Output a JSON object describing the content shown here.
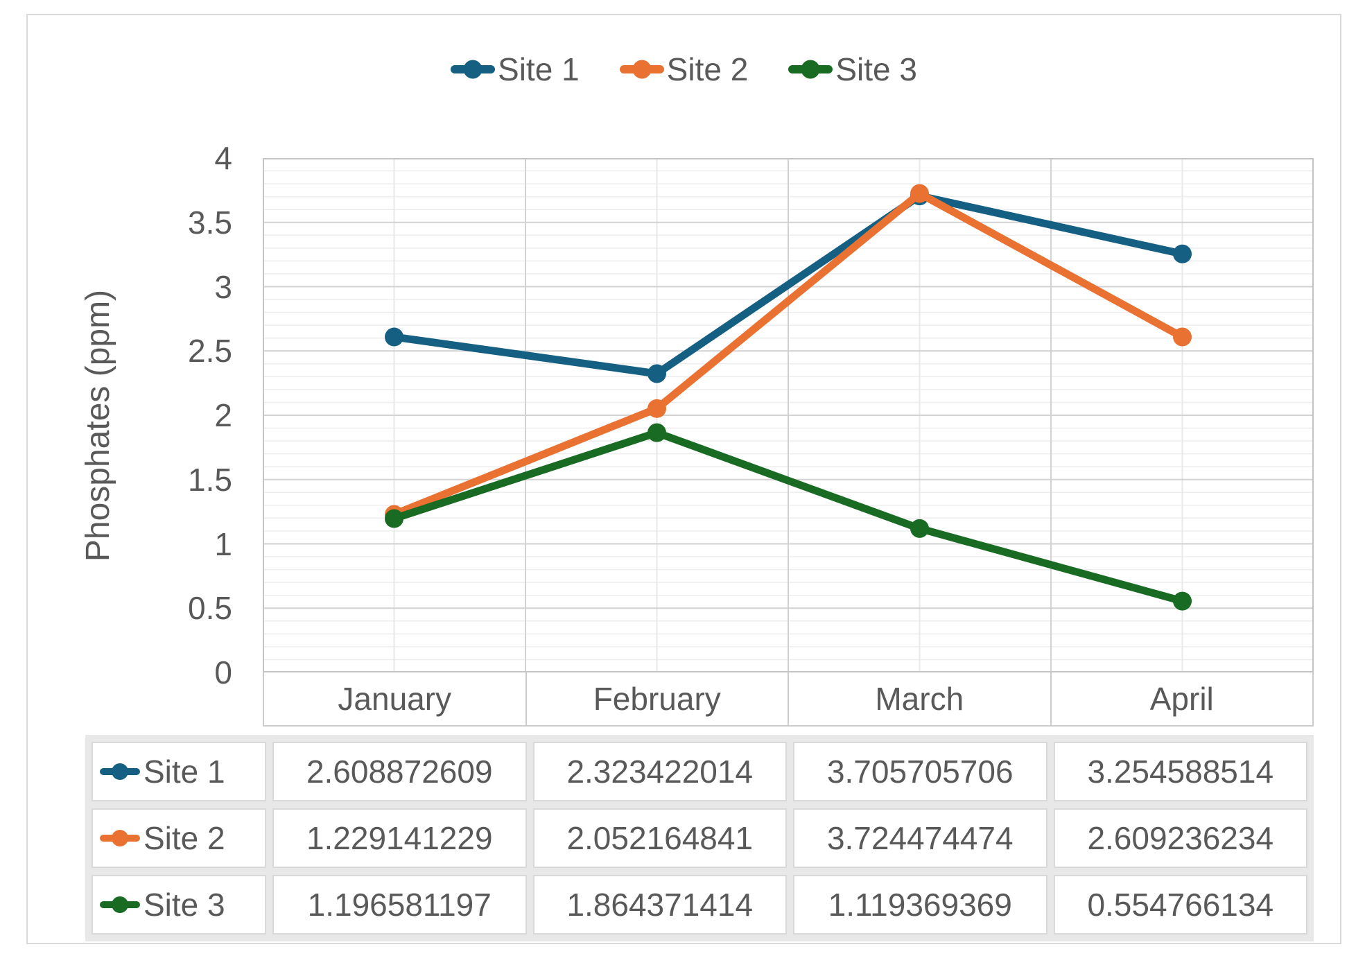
{
  "chart_data": {
    "type": "line",
    "title": "",
    "xlabel": "",
    "ylabel": "Phosphates (ppm)",
    "categories": [
      "January",
      "February",
      "March",
      "April"
    ],
    "series": [
      {
        "name": "Site 1",
        "color": "#156082",
        "values": [
          2.608872609,
          2.323422014,
          3.705705706,
          3.254588514
        ]
      },
      {
        "name": "Site 2",
        "color": "#E97132",
        "values": [
          1.229141229,
          2.052164841,
          3.724474474,
          2.609236234
        ]
      },
      {
        "name": "Site 3",
        "color": "#196B24",
        "values": [
          1.196581197,
          1.864371414,
          1.119369369,
          0.554766134
        ]
      }
    ],
    "ylim": [
      0,
      4
    ],
    "y_major_step": 0.5,
    "y_minor_step": 0.1,
    "y_tick_labels": [
      "4",
      "3.5",
      "3",
      "2.5",
      "2",
      "1.5",
      "1",
      "0.5",
      "0"
    ],
    "grid": true,
    "legend_position": "top-center",
    "marker": "circle",
    "data_table": {
      "shown": true,
      "row_headers": [
        "Site 1",
        "Site 2",
        "Site 3"
      ],
      "rows": [
        [
          "2.608872609",
          "2.323422014",
          "3.705705706",
          "3.254588514"
        ],
        [
          "1.229141229",
          "2.052164841",
          "3.724474474",
          "2.609236234"
        ],
        [
          "1.196581197",
          "1.864371414",
          "1.119369369",
          "0.554766134"
        ]
      ]
    }
  },
  "colors": {
    "text": "#595959",
    "frame_border": "#D9D9D9",
    "grid_minor": "#EDEDED",
    "grid_major": "#D2D2D2",
    "grid_center": "#E8E8E8",
    "plot_border": "#C4C4C4",
    "table_border": "#D9D9D9",
    "table_gap": "#E8E8E8",
    "background": "#FFFFFF"
  }
}
